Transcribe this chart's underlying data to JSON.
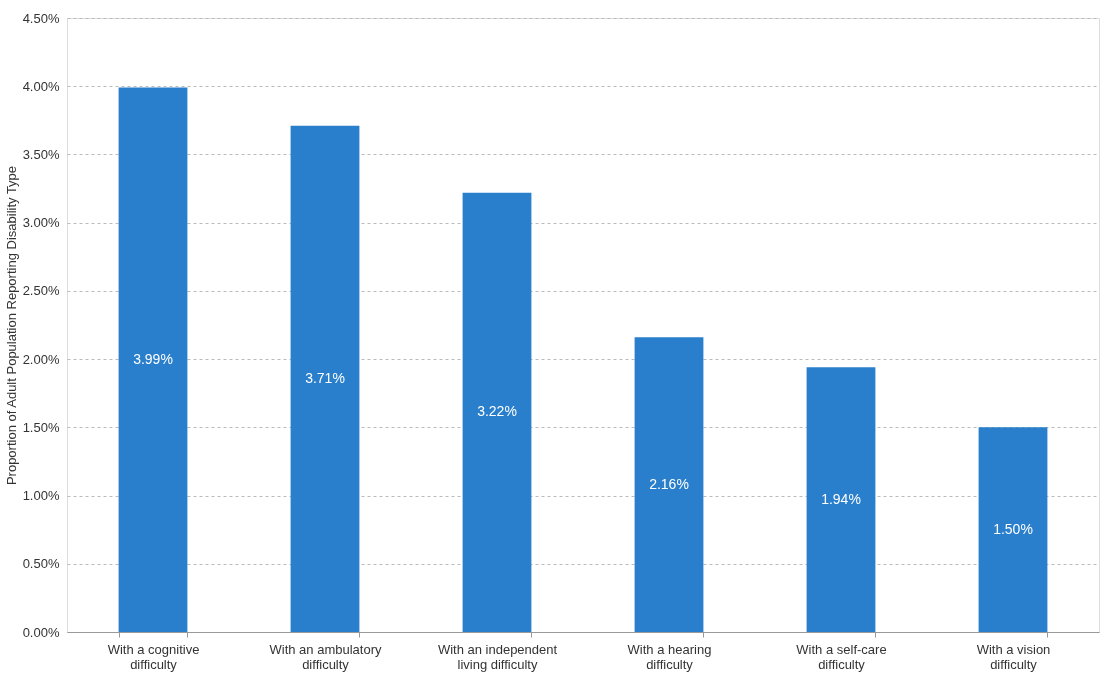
{
  "chart_data": {
    "type": "bar",
    "ylabel": "Proportion of Adult Population Reporting Disability Type",
    "categories": [
      "With a cognitive difficulty",
      "With an ambulatory difficulty",
      "With an independent living difficulty",
      "With a hearing difficulty",
      "With a self-care difficulty",
      "With a vision difficulty"
    ],
    "values": [
      3.99,
      3.71,
      3.22,
      2.16,
      1.94,
      1.5
    ],
    "value_labels": [
      "3.99%",
      "3.71%",
      "3.22%",
      "2.16%",
      "1.94%",
      "1.50%"
    ],
    "color": "#2a7fcc",
    "ylim": [
      0,
      4.5
    ],
    "yticks": [
      {
        "value": 0,
        "label": "0.00%"
      },
      {
        "value": 0.5,
        "label": "0.50%"
      },
      {
        "value": 1,
        "label": "1.00%"
      },
      {
        "value": 1.5,
        "label": "1.50%"
      },
      {
        "value": 2,
        "label": "2.00%"
      },
      {
        "value": 2.5,
        "label": "2.50%"
      },
      {
        "value": 3,
        "label": "3.00%"
      },
      {
        "value": 3.5,
        "label": "3.50%"
      },
      {
        "value": 4,
        "label": "4.00%"
      },
      {
        "value": 4.5,
        "label": "4.50%"
      }
    ],
    "grid": "y"
  }
}
